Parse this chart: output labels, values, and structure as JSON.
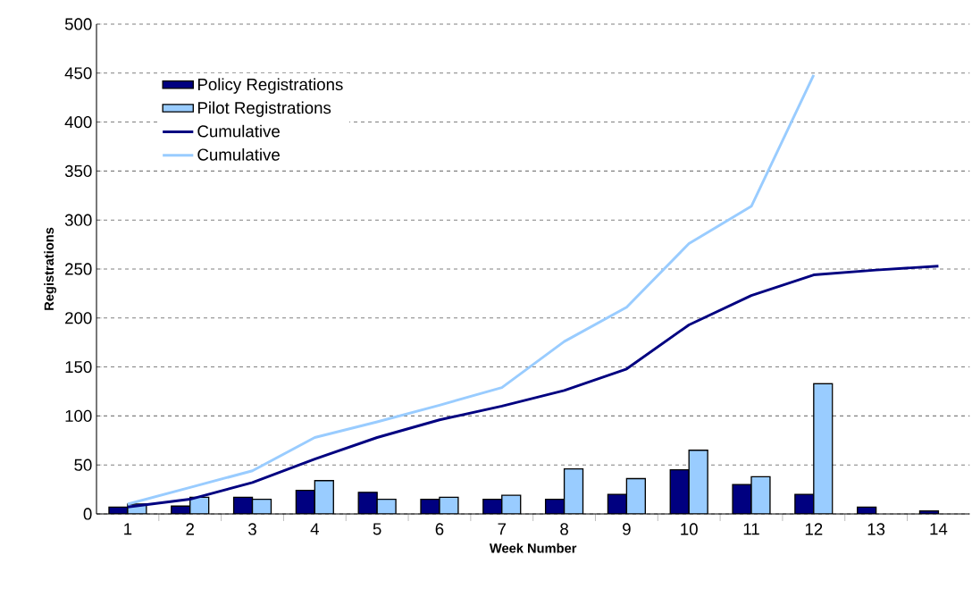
{
  "chart_data": {
    "type": "bar",
    "xlabel": "Week Number",
    "ylabel": "Registrations",
    "categories": [
      "1",
      "2",
      "3",
      "4",
      "5",
      "6",
      "7",
      "8",
      "9",
      "10",
      "11",
      "12",
      "13",
      "14"
    ],
    "series": [
      {
        "name": "Policy Registrations",
        "type": "bar",
        "color": "#000080",
        "values": [
          7,
          8,
          17,
          24,
          22,
          15,
          15,
          15,
          20,
          45,
          30,
          20,
          7,
          3
        ]
      },
      {
        "name": "Pilot Registrations",
        "type": "bar",
        "color": "#99ccff",
        "values": [
          10,
          17,
          15,
          34,
          15,
          17,
          19,
          46,
          36,
          65,
          38,
          133,
          null,
          null
        ]
      },
      {
        "name": "Cumulative",
        "type": "line",
        "color": "#000080",
        "values": [
          7,
          15,
          32,
          56,
          78,
          96,
          110,
          126,
          148,
          193,
          223,
          244,
          249,
          253
        ]
      },
      {
        "name": "Cumulative",
        "type": "line",
        "color": "#99ccff",
        "values": [
          10,
          27,
          44,
          78,
          94,
          111,
          129,
          176,
          211,
          276,
          314,
          448,
          null,
          null
        ]
      }
    ],
    "ylim": [
      0,
      500
    ],
    "yticks": [
      0,
      50,
      100,
      150,
      200,
      250,
      300,
      350,
      400,
      450,
      500
    ],
    "grid": "y",
    "legend": "top left"
  }
}
